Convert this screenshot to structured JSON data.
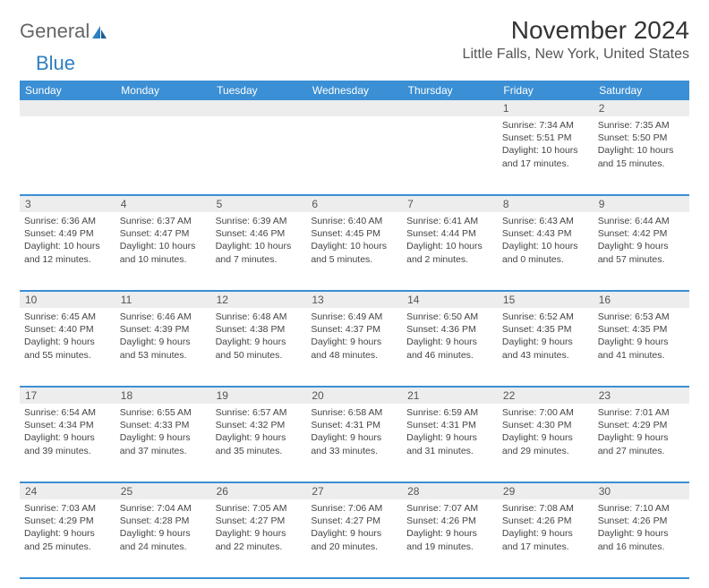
{
  "brand": {
    "general": "General",
    "blue": "Blue"
  },
  "header": {
    "month_title": "November 2024",
    "location": "Little Falls, New York, United States"
  },
  "colors": {
    "header_bg": "#3b8fd4",
    "header_text": "#ffffff",
    "daynum_bg": "#ededed",
    "cell_border": "#3b8fd4",
    "body_text": "#444444",
    "logo_blue": "#2d7fc1",
    "logo_gray": "#666666"
  },
  "weekdays": [
    "Sunday",
    "Monday",
    "Tuesday",
    "Wednesday",
    "Thursday",
    "Friday",
    "Saturday"
  ],
  "weeks": [
    {
      "nums": [
        "",
        "",
        "",
        "",
        "",
        "1",
        "2"
      ],
      "cells": [
        null,
        null,
        null,
        null,
        null,
        {
          "sunrise": "Sunrise: 7:34 AM",
          "sunset": "Sunset: 5:51 PM",
          "d1": "Daylight: 10 hours",
          "d2": "and 17 minutes."
        },
        {
          "sunrise": "Sunrise: 7:35 AM",
          "sunset": "Sunset: 5:50 PM",
          "d1": "Daylight: 10 hours",
          "d2": "and 15 minutes."
        }
      ]
    },
    {
      "nums": [
        "3",
        "4",
        "5",
        "6",
        "7",
        "8",
        "9"
      ],
      "cells": [
        {
          "sunrise": "Sunrise: 6:36 AM",
          "sunset": "Sunset: 4:49 PM",
          "d1": "Daylight: 10 hours",
          "d2": "and 12 minutes."
        },
        {
          "sunrise": "Sunrise: 6:37 AM",
          "sunset": "Sunset: 4:47 PM",
          "d1": "Daylight: 10 hours",
          "d2": "and 10 minutes."
        },
        {
          "sunrise": "Sunrise: 6:39 AM",
          "sunset": "Sunset: 4:46 PM",
          "d1": "Daylight: 10 hours",
          "d2": "and 7 minutes."
        },
        {
          "sunrise": "Sunrise: 6:40 AM",
          "sunset": "Sunset: 4:45 PM",
          "d1": "Daylight: 10 hours",
          "d2": "and 5 minutes."
        },
        {
          "sunrise": "Sunrise: 6:41 AM",
          "sunset": "Sunset: 4:44 PM",
          "d1": "Daylight: 10 hours",
          "d2": "and 2 minutes."
        },
        {
          "sunrise": "Sunrise: 6:43 AM",
          "sunset": "Sunset: 4:43 PM",
          "d1": "Daylight: 10 hours",
          "d2": "and 0 minutes."
        },
        {
          "sunrise": "Sunrise: 6:44 AM",
          "sunset": "Sunset: 4:42 PM",
          "d1": "Daylight: 9 hours",
          "d2": "and 57 minutes."
        }
      ]
    },
    {
      "nums": [
        "10",
        "11",
        "12",
        "13",
        "14",
        "15",
        "16"
      ],
      "cells": [
        {
          "sunrise": "Sunrise: 6:45 AM",
          "sunset": "Sunset: 4:40 PM",
          "d1": "Daylight: 9 hours",
          "d2": "and 55 minutes."
        },
        {
          "sunrise": "Sunrise: 6:46 AM",
          "sunset": "Sunset: 4:39 PM",
          "d1": "Daylight: 9 hours",
          "d2": "and 53 minutes."
        },
        {
          "sunrise": "Sunrise: 6:48 AM",
          "sunset": "Sunset: 4:38 PM",
          "d1": "Daylight: 9 hours",
          "d2": "and 50 minutes."
        },
        {
          "sunrise": "Sunrise: 6:49 AM",
          "sunset": "Sunset: 4:37 PM",
          "d1": "Daylight: 9 hours",
          "d2": "and 48 minutes."
        },
        {
          "sunrise": "Sunrise: 6:50 AM",
          "sunset": "Sunset: 4:36 PM",
          "d1": "Daylight: 9 hours",
          "d2": "and 46 minutes."
        },
        {
          "sunrise": "Sunrise: 6:52 AM",
          "sunset": "Sunset: 4:35 PM",
          "d1": "Daylight: 9 hours",
          "d2": "and 43 minutes."
        },
        {
          "sunrise": "Sunrise: 6:53 AM",
          "sunset": "Sunset: 4:35 PM",
          "d1": "Daylight: 9 hours",
          "d2": "and 41 minutes."
        }
      ]
    },
    {
      "nums": [
        "17",
        "18",
        "19",
        "20",
        "21",
        "22",
        "23"
      ],
      "cells": [
        {
          "sunrise": "Sunrise: 6:54 AM",
          "sunset": "Sunset: 4:34 PM",
          "d1": "Daylight: 9 hours",
          "d2": "and 39 minutes."
        },
        {
          "sunrise": "Sunrise: 6:55 AM",
          "sunset": "Sunset: 4:33 PM",
          "d1": "Daylight: 9 hours",
          "d2": "and 37 minutes."
        },
        {
          "sunrise": "Sunrise: 6:57 AM",
          "sunset": "Sunset: 4:32 PM",
          "d1": "Daylight: 9 hours",
          "d2": "and 35 minutes."
        },
        {
          "sunrise": "Sunrise: 6:58 AM",
          "sunset": "Sunset: 4:31 PM",
          "d1": "Daylight: 9 hours",
          "d2": "and 33 minutes."
        },
        {
          "sunrise": "Sunrise: 6:59 AM",
          "sunset": "Sunset: 4:31 PM",
          "d1": "Daylight: 9 hours",
          "d2": "and 31 minutes."
        },
        {
          "sunrise": "Sunrise: 7:00 AM",
          "sunset": "Sunset: 4:30 PM",
          "d1": "Daylight: 9 hours",
          "d2": "and 29 minutes."
        },
        {
          "sunrise": "Sunrise: 7:01 AM",
          "sunset": "Sunset: 4:29 PM",
          "d1": "Daylight: 9 hours",
          "d2": "and 27 minutes."
        }
      ]
    },
    {
      "nums": [
        "24",
        "25",
        "26",
        "27",
        "28",
        "29",
        "30"
      ],
      "cells": [
        {
          "sunrise": "Sunrise: 7:03 AM",
          "sunset": "Sunset: 4:29 PM",
          "d1": "Daylight: 9 hours",
          "d2": "and 25 minutes."
        },
        {
          "sunrise": "Sunrise: 7:04 AM",
          "sunset": "Sunset: 4:28 PM",
          "d1": "Daylight: 9 hours",
          "d2": "and 24 minutes."
        },
        {
          "sunrise": "Sunrise: 7:05 AM",
          "sunset": "Sunset: 4:27 PM",
          "d1": "Daylight: 9 hours",
          "d2": "and 22 minutes."
        },
        {
          "sunrise": "Sunrise: 7:06 AM",
          "sunset": "Sunset: 4:27 PM",
          "d1": "Daylight: 9 hours",
          "d2": "and 20 minutes."
        },
        {
          "sunrise": "Sunrise: 7:07 AM",
          "sunset": "Sunset: 4:26 PM",
          "d1": "Daylight: 9 hours",
          "d2": "and 19 minutes."
        },
        {
          "sunrise": "Sunrise: 7:08 AM",
          "sunset": "Sunset: 4:26 PM",
          "d1": "Daylight: 9 hours",
          "d2": "and 17 minutes."
        },
        {
          "sunrise": "Sunrise: 7:10 AM",
          "sunset": "Sunset: 4:26 PM",
          "d1": "Daylight: 9 hours",
          "d2": "and 16 minutes."
        }
      ]
    }
  ]
}
